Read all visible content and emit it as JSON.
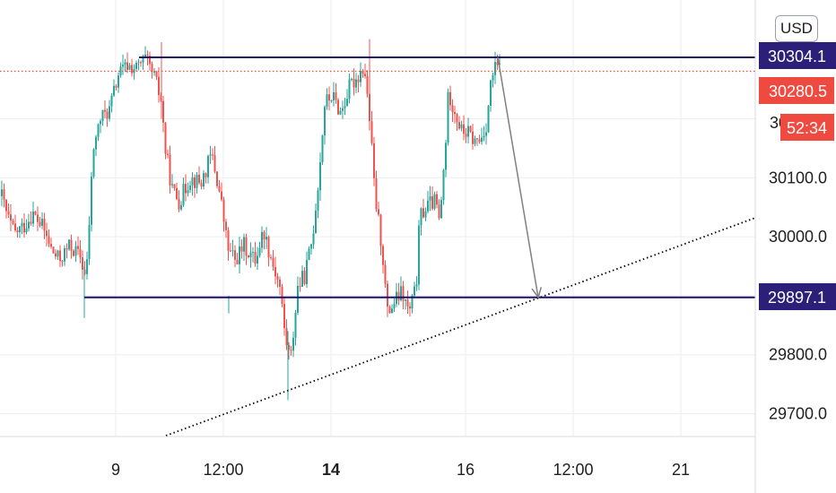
{
  "currency": "USD",
  "colors": {
    "up": "#26a69a",
    "down": "#ef5350",
    "level_line": "#1a1070",
    "level_tag": "#2b1f7a",
    "price_tag": "#ef4a3f",
    "trendline": "#000000",
    "arrow": "#808080",
    "grid": "#eceef2"
  },
  "chart_data": {
    "type": "candlestick",
    "y_axis": {
      "range": [
        29660,
        30355
      ],
      "ticks": [
        {
          "value": 30100,
          "label": "30100.0"
        },
        {
          "value": 30000,
          "label": "30000.0"
        },
        {
          "value": 29800,
          "label": "29800.0"
        },
        {
          "value": 29700,
          "label": "29700.0"
        }
      ]
    },
    "x_axis": {
      "ticks": [
        {
          "t": 0,
          "label": "9",
          "bold": false
        },
        {
          "t": 12,
          "label": "12:00",
          "bold": false
        },
        {
          "t": 24,
          "label": "14",
          "bold": true
        },
        {
          "t": 39,
          "label": "16",
          "bold": false
        },
        {
          "t": 51,
          "label": "12:00",
          "bold": false
        },
        {
          "t": 63,
          "label": "21",
          "bold": false
        }
      ]
    },
    "horizontal_levels": [
      {
        "value": 30304.1,
        "label": "30304.1"
      },
      {
        "value": 29897.1,
        "label": "29897.1"
      }
    ],
    "last_price": {
      "value": 30280.5,
      "label": "30280.5",
      "countdown": "52:34"
    },
    "trendline_style": "dotted",
    "arrow_annotation": {
      "from_value": 30304.1,
      "to_value": 29897.1
    },
    "series": []
  }
}
